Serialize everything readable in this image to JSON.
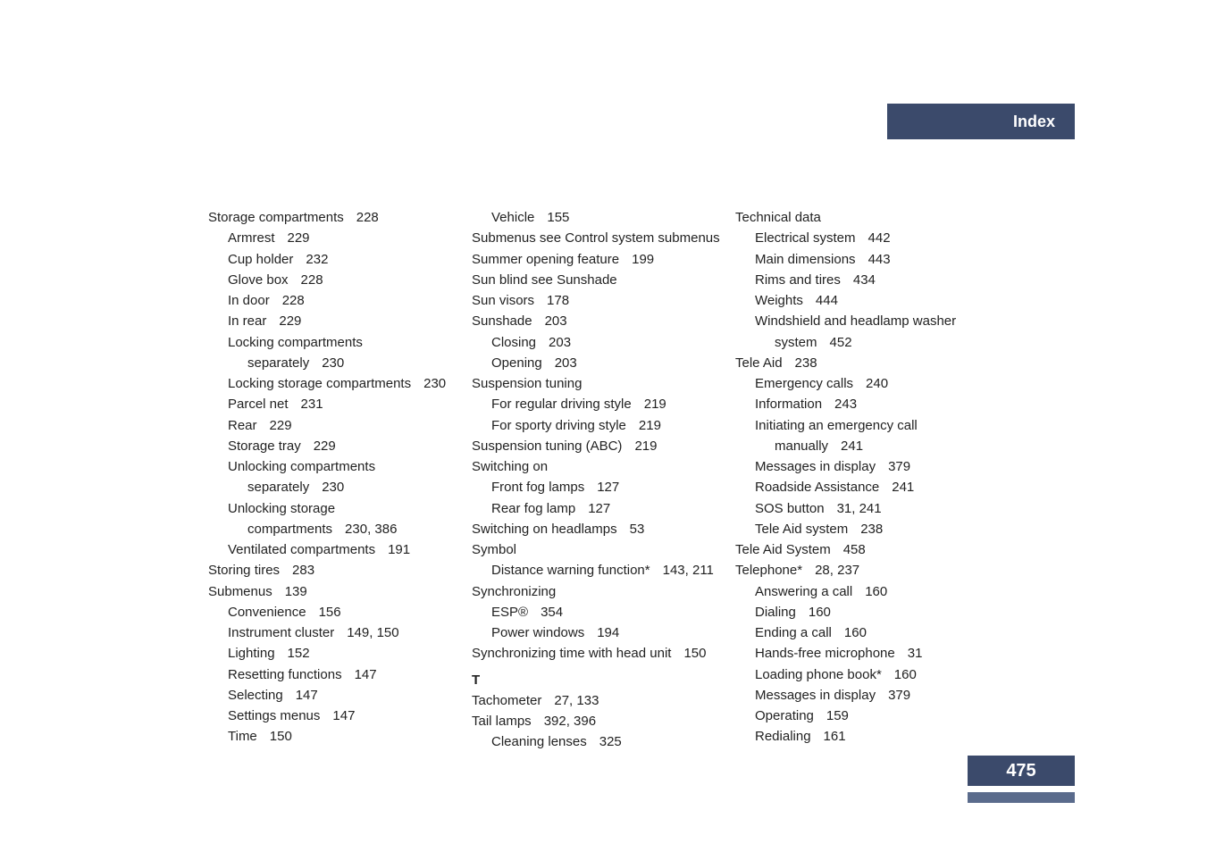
{
  "header": {
    "title": "Index"
  },
  "pageNumber": "475",
  "columns": [
    [
      {
        "text": "Storage compartments",
        "page": "228",
        "indent": 0
      },
      {
        "text": "Armrest",
        "page": "229",
        "indent": 1
      },
      {
        "text": "Cup holder",
        "page": "232",
        "indent": 1
      },
      {
        "text": "Glove box",
        "page": "228",
        "indent": 1
      },
      {
        "text": "In door",
        "page": "228",
        "indent": 1
      },
      {
        "text": "In rear",
        "page": "229",
        "indent": 1
      },
      {
        "text": "Locking compartments",
        "page": "",
        "indent": 1
      },
      {
        "text": "separately",
        "page": "230",
        "indent": 2
      },
      {
        "text": "Locking storage compartments",
        "page": "230",
        "indent": 1
      },
      {
        "text": "Parcel net",
        "page": "231",
        "indent": 1
      },
      {
        "text": "Rear",
        "page": "229",
        "indent": 1
      },
      {
        "text": "Storage tray",
        "page": "229",
        "indent": 1
      },
      {
        "text": "Unlocking compartments",
        "page": "",
        "indent": 1
      },
      {
        "text": "separately",
        "page": "230",
        "indent": 2
      },
      {
        "text": "Unlocking storage",
        "page": "",
        "indent": 1
      },
      {
        "text": "compartments",
        "page": "230, 386",
        "indent": 2
      },
      {
        "text": "Ventilated compartments",
        "page": "191",
        "indent": 1
      },
      {
        "text": "Storing tires",
        "page": "283",
        "indent": 0
      },
      {
        "text": "Submenus",
        "page": "139",
        "indent": 0
      },
      {
        "text": "Convenience",
        "page": "156",
        "indent": 1
      },
      {
        "text": "Instrument cluster",
        "page": "149, 150",
        "indent": 1
      },
      {
        "text": "Lighting",
        "page": "152",
        "indent": 1
      },
      {
        "text": "Resetting functions",
        "page": "147",
        "indent": 1
      },
      {
        "text": "Selecting",
        "page": "147",
        "indent": 1
      },
      {
        "text": "Settings menus",
        "page": "147",
        "indent": 1
      },
      {
        "text": "Time",
        "page": "150",
        "indent": 1
      }
    ],
    [
      {
        "text": "Vehicle",
        "page": "155",
        "indent": 1
      },
      {
        "text": "Submenus see Control system submenus",
        "page": "",
        "indent": 0
      },
      {
        "text": "Summer opening feature",
        "page": "199",
        "indent": 0
      },
      {
        "text": "Sun blind see Sunshade",
        "page": "",
        "indent": 0
      },
      {
        "text": "Sun visors",
        "page": "178",
        "indent": 0
      },
      {
        "text": "Sunshade",
        "page": "203",
        "indent": 0
      },
      {
        "text": "Closing",
        "page": "203",
        "indent": 1
      },
      {
        "text": "Opening",
        "page": "203",
        "indent": 1
      },
      {
        "text": "Suspension tuning",
        "page": "",
        "indent": 0
      },
      {
        "text": "For regular driving style",
        "page": "219",
        "indent": 1
      },
      {
        "text": "For sporty driving style",
        "page": "219",
        "indent": 1
      },
      {
        "text": "Suspension tuning (ABC)",
        "page": "219",
        "indent": 0
      },
      {
        "text": "Switching on",
        "page": "",
        "indent": 0
      },
      {
        "text": "Front fog lamps",
        "page": "127",
        "indent": 1
      },
      {
        "text": "Rear fog lamp",
        "page": "127",
        "indent": 1
      },
      {
        "text": "Switching on headlamps",
        "page": "53",
        "indent": 0
      },
      {
        "text": "Symbol",
        "page": "",
        "indent": 0
      },
      {
        "text": "Distance warning function*",
        "page": "143, 211",
        "indent": 1
      },
      {
        "text": "Synchronizing",
        "page": "",
        "indent": 0
      },
      {
        "text": "ESP®",
        "page": "354",
        "indent": 1
      },
      {
        "text": "Power windows",
        "page": "194",
        "indent": 1
      },
      {
        "text": "Synchronizing time with head unit",
        "page": "150",
        "indent": 0
      },
      {
        "letter": "T"
      },
      {
        "text": "Tachometer",
        "page": "27, 133",
        "indent": 0
      },
      {
        "text": "Tail lamps",
        "page": "392, 396",
        "indent": 0
      },
      {
        "text": "Cleaning lenses",
        "page": "325",
        "indent": 1
      }
    ],
    [
      {
        "text": "Technical data",
        "page": "",
        "indent": 0
      },
      {
        "text": "Electrical system",
        "page": "442",
        "indent": 1
      },
      {
        "text": "Main dimensions",
        "page": "443",
        "indent": 1
      },
      {
        "text": "Rims and tires",
        "page": "434",
        "indent": 1
      },
      {
        "text": "Weights",
        "page": "444",
        "indent": 1
      },
      {
        "text": "Windshield and headlamp washer",
        "page": "",
        "indent": 1
      },
      {
        "text": "system",
        "page": "452",
        "indent": 2
      },
      {
        "text": "Tele Aid",
        "page": "238",
        "indent": 0
      },
      {
        "text": "Emergency calls",
        "page": "240",
        "indent": 1
      },
      {
        "text": "Information",
        "page": "243",
        "indent": 1
      },
      {
        "text": "Initiating an emergency call",
        "page": "",
        "indent": 1
      },
      {
        "text": "manually",
        "page": "241",
        "indent": 2
      },
      {
        "text": "Messages in display",
        "page": "379",
        "indent": 1
      },
      {
        "text": "Roadside Assistance",
        "page": "241",
        "indent": 1
      },
      {
        "text": "SOS button",
        "page": "31, 241",
        "indent": 1
      },
      {
        "text": "Tele Aid system",
        "page": "238",
        "indent": 1
      },
      {
        "text": "Tele Aid System",
        "page": "458",
        "indent": 0
      },
      {
        "text": "Telephone*",
        "page": "28, 237",
        "indent": 0
      },
      {
        "text": "Answering a call",
        "page": "160",
        "indent": 1
      },
      {
        "text": "Dialing",
        "page": "160",
        "indent": 1
      },
      {
        "text": "Ending a call",
        "page": "160",
        "indent": 1
      },
      {
        "text": "Hands-free microphone",
        "page": "31",
        "indent": 1
      },
      {
        "text": "Loading phone book*",
        "page": "160",
        "indent": 1
      },
      {
        "text": "Messages in display",
        "page": "379",
        "indent": 1
      },
      {
        "text": "Operating",
        "page": "159",
        "indent": 1
      },
      {
        "text": "Redialing",
        "page": "161",
        "indent": 1
      }
    ]
  ]
}
